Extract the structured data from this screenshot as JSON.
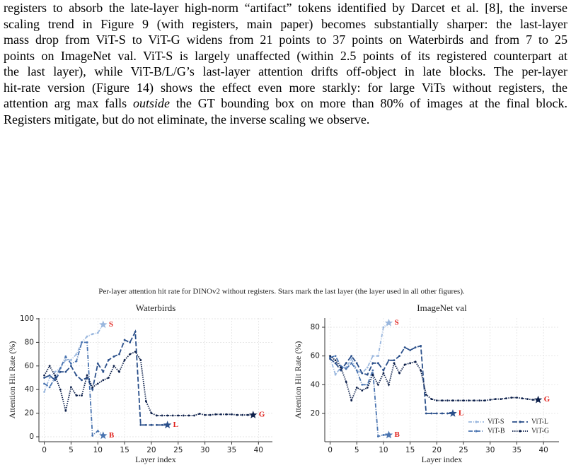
{
  "text": {
    "lines": [
      "registers to absorb the late-layer high-norm “artifact” tokens identified by Darcet et al. [8], the inverse",
      "scaling trend in Figure 9 (with registers, main paper) becomes substantially sharper: the last-layer",
      "mass drop from ViT-S to ViT-G widens from 21 points to 37 points on Waterbirds and from 7 to 25",
      "points on ImageNet val. ViT-S is largely unaffected (within 2.5 points of its registered counterpart at",
      "the last layer), while ViT-B/L/G’s last-layer attention drifts off-object in late blocks. The per-layer",
      "hit-rate version (Figure 14) shows the effect even more starkly: for large ViTs without registers, the"
    ],
    "line7": {
      "before": "attention arg max falls ",
      "italic": "outside",
      "after": " the GT bounding box on more than 80% of images at the final block."
    },
    "last_line": "Registers mitigate, but do not eliminate, the inverse scaling we observe."
  },
  "figure_caption": "Per-layer attention hit rate for DINOv2 without registers. Stars mark the last layer (the layer used in all other figures).",
  "chart_data": [
    {
      "type": "line",
      "title": "Waterbirds",
      "x_label": "Layer index",
      "y_label": "Attention Hit Rate (%)",
      "xlim": [
        -1,
        42.6
      ],
      "xticks": [
        0,
        5,
        10,
        15,
        20,
        25,
        30,
        35,
        40
      ],
      "ylim": [
        -4.2,
        100.6
      ],
      "yticks": [
        0,
        20,
        40,
        60,
        80,
        100
      ],
      "grid": true,
      "legend": false,
      "series": [
        {
          "color": "#9ab7de",
          "end_label": "S",
          "x": [
            0,
            1,
            2,
            3,
            4,
            5,
            6,
            7,
            8,
            9,
            10,
            11
          ],
          "values": [
            38,
            50,
            55,
            58,
            65,
            65,
            70,
            80,
            85,
            87,
            88,
            95
          ]
        },
        {
          "color": "#4a74b0",
          "end_label": "B",
          "x": [
            0,
            1,
            2,
            3,
            4,
            5,
            6,
            7,
            8,
            9,
            10,
            11
          ],
          "values": [
            45,
            42,
            50,
            58,
            68,
            62,
            64,
            80,
            80,
            1,
            5,
            1
          ]
        },
        {
          "color": "#2a4f8a",
          "end_label": "L",
          "x": [
            0,
            1,
            2,
            3,
            4,
            5,
            6,
            7,
            8,
            9,
            10,
            11,
            12,
            13,
            14,
            15,
            16,
            17,
            18,
            19,
            20,
            21,
            22,
            23
          ],
          "values": [
            50,
            52,
            48,
            55,
            55,
            60,
            52,
            48,
            50,
            40,
            62,
            55,
            65,
            68,
            70,
            82,
            80,
            89,
            10,
            10,
            10,
            10,
            10,
            10
          ]
        },
        {
          "color": "#0c1f4a",
          "end_label": "G",
          "x": [
            0,
            1,
            2,
            3,
            4,
            5,
            6,
            7,
            8,
            9,
            10,
            11,
            12,
            13,
            14,
            15,
            16,
            17,
            18,
            19,
            20,
            21,
            22,
            23,
            24,
            25,
            26,
            27,
            28,
            29,
            30,
            31,
            32,
            33,
            34,
            35,
            36,
            37,
            38,
            39
          ],
          "values": [
            52,
            60,
            52,
            40,
            22,
            42,
            35,
            35,
            52,
            42,
            45,
            48,
            50,
            60,
            55,
            65,
            70,
            72,
            65,
            30,
            20,
            18,
            18,
            18,
            18,
            18,
            18,
            18,
            18,
            19.5,
            18.5,
            18.5,
            19,
            19,
            19,
            19,
            18.5,
            18.5,
            18.5,
            18.5
          ]
        }
      ]
    },
    {
      "type": "line",
      "title": "ImageNet val",
      "x_label": "Layer index",
      "y_label": "Attention Hit Rate (%)",
      "xlim": [
        -1,
        42.9
      ],
      "xticks": [
        0,
        5,
        10,
        15,
        20,
        25,
        30,
        35,
        40
      ],
      "ylim": [
        0.3,
        86.4
      ],
      "yticks": [
        20,
        40,
        60,
        80
      ],
      "grid": true,
      "legend": true,
      "legend_position": "lower right",
      "series": [
        {
          "name": "ViT-S",
          "color": "#9ab7de",
          "end_label": "S",
          "x": [
            0,
            1,
            2,
            3,
            4,
            5,
            6,
            7,
            8,
            9,
            10,
            11
          ],
          "values": [
            59,
            47,
            52,
            52,
            58,
            50,
            48,
            52,
            60,
            60,
            80,
            83
          ]
        },
        {
          "name": "ViT-B",
          "color": "#4a74b0",
          "end_label": "B",
          "x": [
            0,
            1,
            2,
            3,
            4,
            5,
            6,
            7,
            8,
            9,
            10,
            11
          ],
          "values": [
            59,
            60,
            53,
            51,
            55,
            50,
            40,
            40,
            50,
            4,
            5,
            5
          ]
        },
        {
          "name": "ViT-L",
          "color": "#2a4f8a",
          "end_label": "L",
          "x": [
            0,
            1,
            2,
            3,
            4,
            5,
            6,
            7,
            8,
            9,
            10,
            11,
            12,
            13,
            14,
            15,
            16,
            17,
            18,
            19,
            20,
            21,
            22,
            23
          ],
          "values": [
            58,
            55,
            50,
            55,
            60,
            55,
            48,
            47,
            55,
            55,
            50,
            57,
            57,
            60,
            66,
            64,
            66,
            67,
            20,
            20,
            20,
            20,
            20,
            20
          ]
        },
        {
          "name": "ViT-G",
          "color": "#0c1f4a",
          "end_label": "G",
          "x": [
            0,
            1,
            2,
            3,
            4,
            5,
            6,
            7,
            8,
            9,
            10,
            11,
            12,
            13,
            14,
            15,
            16,
            17,
            18,
            19,
            20,
            21,
            22,
            23,
            24,
            25,
            26,
            27,
            28,
            29,
            30,
            31,
            32,
            33,
            34,
            35,
            36,
            37,
            38,
            39
          ],
          "values": [
            60,
            57,
            52,
            42,
            29,
            38,
            36,
            38,
            47,
            40,
            48,
            40,
            55,
            48,
            54,
            55,
            56,
            50,
            33,
            30,
            29,
            29,
            29,
            29,
            29,
            29,
            29,
            29,
            29,
            29,
            29.5,
            30,
            30,
            30.5,
            31,
            31,
            30.5,
            30,
            29.5,
            29.5
          ]
        }
      ]
    }
  ]
}
